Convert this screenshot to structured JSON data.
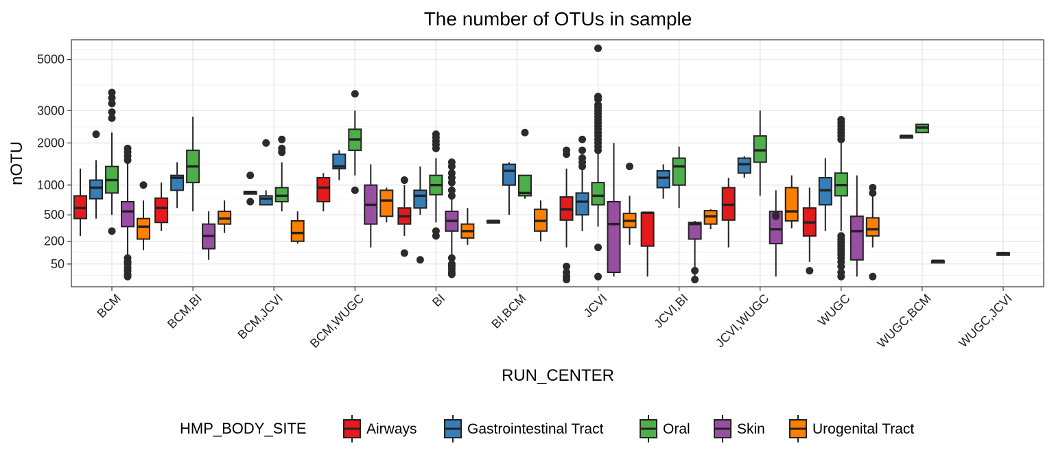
{
  "chart_data": {
    "type": "boxplot",
    "title": "The number of OTUs in sample",
    "xlabel": "RUN_CENTER",
    "ylabel": "nOTU",
    "y_scale": "sqrt",
    "ylim": [
      0,
      5900
    ],
    "y_ticks": [
      50,
      200,
      500,
      1000,
      2000,
      3000,
      5000
    ],
    "grid": true,
    "legend": {
      "title": "HMP_BODY_SITE",
      "position": "bottom",
      "entries": [
        "Airways",
        "Gastrointestinal Tract",
        "Oral",
        "Skin",
        "Urogenital Tract"
      ]
    },
    "colors": {
      "Airways": "#e41a1c",
      "Gastrointestinal Tract": "#377eb8",
      "Oral": "#4daf4a",
      "Skin": "#984ea3",
      "Urogenital Tract": "#ff7f00"
    },
    "categories": [
      "BCM",
      "BCM,BI",
      "BCM,JCVI",
      "BCM,WUGC",
      "BI",
      "BI,BCM",
      "JCVI",
      "JCVI,BI",
      "JCVI,WUGC",
      "WUGC",
      "WUGC,BCM",
      "WUGC,JCVI"
    ],
    "groups": [
      {
        "category": "BCM",
        "boxes": [
          {
            "site": "Airways",
            "whisker_low": 250,
            "q1": 450,
            "median": 600,
            "q3": 800,
            "whisker_high": 1350,
            "outliers": []
          },
          {
            "site": "Gastrointestinal Tract",
            "whisker_low": 450,
            "q1": 750,
            "median": 950,
            "q3": 1100,
            "whisker_high": 1550,
            "outliers": [
              2250
            ]
          },
          {
            "site": "Oral",
            "whisker_low": 500,
            "q1": 850,
            "median": 1100,
            "q3": 1400,
            "whisker_high": 2300,
            "outliers": [
              2750,
              2950,
              3250,
              3450,
              3650,
              300
            ]
          },
          {
            "site": "Skin",
            "whisker_low": 100,
            "q1": 350,
            "median": 550,
            "q3": 700,
            "whisker_high": 1500,
            "outliers": [
              1550,
              1650,
              1750,
              1850,
              80,
              60,
              50,
              35,
              25,
              15,
              10,
              60
            ]
          },
          {
            "site": "Urogenital Tract",
            "whisker_low": 130,
            "q1": 220,
            "median": 350,
            "q3": 450,
            "whisker_high": 720,
            "outliers": [
              1000
            ]
          }
        ]
      },
      {
        "category": "BCM,BI",
        "boxes": [
          {
            "site": "Airways",
            "whisker_low": 300,
            "q1": 400,
            "median": 600,
            "q3": 760,
            "whisker_high": 1050,
            "outliers": []
          },
          {
            "site": "Gastrointestinal Tract",
            "whisker_low": 600,
            "q1": 900,
            "median": 1150,
            "q3": 1200,
            "whisker_high": 1500,
            "outliers": []
          },
          {
            "site": "Oral",
            "whisker_low": 550,
            "q1": 1050,
            "median": 1400,
            "q3": 1800,
            "whisker_high": 2800,
            "outliers": []
          },
          {
            "site": "Skin",
            "whisker_low": 70,
            "q1": 140,
            "median": 250,
            "q3": 380,
            "whisker_high": 550,
            "outliers": []
          },
          {
            "site": "Urogenital Tract",
            "whisker_low": 280,
            "q1": 380,
            "median": 450,
            "q3": 550,
            "whisker_high": 720,
            "outliers": []
          }
        ]
      },
      {
        "category": "BCM,JCVI",
        "boxes": [
          {
            "site": "Airways",
            "whisker_low": 850,
            "q1": 850,
            "median": 870,
            "q3": 870,
            "whisker_high": 870,
            "outliers": [
              1200,
              700
            ]
          },
          {
            "site": "Gastrointestinal Tract",
            "whisker_low": 650,
            "q1": 650,
            "median": 750,
            "q3": 800,
            "whisker_high": 900,
            "outliers": [
              2000
            ]
          },
          {
            "site": "Oral",
            "whisker_low": 550,
            "q1": 700,
            "median": 800,
            "q3": 950,
            "whisker_high": 1500,
            "outliers": [
              1750,
              1850,
              2100
            ]
          },
          {
            "site": "Urogenital Tract",
            "whisker_low": 180,
            "q1": 200,
            "median": 280,
            "q3": 420,
            "whisker_high": 550,
            "outliers": []
          }
        ]
      },
      {
        "category": "BCM,WUGC",
        "boxes": [
          {
            "site": "Airways",
            "whisker_low": 550,
            "q1": 700,
            "median": 950,
            "q3": 1150,
            "whisker_high": 1250,
            "outliers": []
          },
          {
            "site": "Gastrointestinal Tract",
            "whisker_low": 1100,
            "q1": 1350,
            "median": 1400,
            "q3": 1700,
            "whisker_high": 1800,
            "outliers": []
          },
          {
            "site": "Oral",
            "whisker_low": 1200,
            "q1": 1800,
            "median": 2100,
            "q3": 2400,
            "whisker_high": 3000,
            "outliers": [
              3600,
              900
            ]
          },
          {
            "site": "Skin",
            "whisker_low": 150,
            "q1": 380,
            "median": 650,
            "q3": 1000,
            "whisker_high": 1450,
            "outliers": []
          },
          {
            "site": "Urogenital Tract",
            "whisker_low": 400,
            "q1": 480,
            "median": 720,
            "q3": 900,
            "whisker_high": 950,
            "outliers": []
          }
        ]
      },
      {
        "category": "BI",
        "boxes": [
          {
            "site": "Airways",
            "whisker_low": 250,
            "q1": 380,
            "median": 480,
            "q3": 600,
            "whisker_high": 1000,
            "outliers": [
              1100,
              110
            ]
          },
          {
            "site": "Gastrointestinal Tract",
            "whisker_low": 500,
            "q1": 600,
            "median": 800,
            "q3": 900,
            "whisker_high": 1400,
            "outliers": [
              70
            ]
          },
          {
            "site": "Oral",
            "whisker_low": 400,
            "q1": 820,
            "median": 1000,
            "q3": 1200,
            "whisker_high": 1600,
            "outliers": [
              1850,
              1950,
              2050,
              2150,
              2250,
              300,
              250
            ]
          },
          {
            "site": "Skin",
            "whisker_low": 80,
            "q1": 300,
            "median": 420,
            "q3": 550,
            "whisker_high": 1000,
            "outliers": [
              1050,
              1150,
              1250,
              1400,
              1500,
              900,
              800,
              80,
              50,
              40,
              30,
              20,
              15
            ]
          },
          {
            "site": "Urogenital Tract",
            "whisker_low": 170,
            "q1": 230,
            "median": 300,
            "q3": 380,
            "whisker_high": 600,
            "outliers": []
          }
        ]
      },
      {
        "category": "BI,BCM",
        "boxes": [
          {
            "site": "Airways",
            "whisker_low": 420,
            "q1": 420,
            "median": 420,
            "q3": 420,
            "whisker_high": 420,
            "outliers": []
          },
          {
            "site": "Gastrointestinal Tract",
            "whisker_low": 500,
            "q1": 1000,
            "median": 1300,
            "q3": 1450,
            "whisker_high": 1500,
            "outliers": []
          },
          {
            "site": "Oral",
            "whisker_low": 750,
            "q1": 800,
            "median": 850,
            "q3": 1200,
            "whisker_high": 1200,
            "outliers": [
              2300
            ]
          },
          {
            "site": "Urogenital Tract",
            "whisker_low": 200,
            "q1": 300,
            "median": 420,
            "q3": 580,
            "whisker_high": 720,
            "outliers": []
          }
        ]
      },
      {
        "category": "JCVI",
        "boxes": [
          {
            "site": "Airways",
            "whisker_low": 150,
            "q1": 430,
            "median": 580,
            "q3": 780,
            "whisker_high": 1350,
            "outliers": [
              1700,
              1800,
              40,
              20,
              10,
              5
            ]
          },
          {
            "site": "Gastrointestinal Tract",
            "whisker_low": 300,
            "q1": 500,
            "median": 700,
            "q3": 850,
            "whisker_high": 1400,
            "outliers": [
              2100,
              1800,
              1600,
              1500,
              1400
            ]
          },
          {
            "site": "Oral",
            "whisker_low": 350,
            "q1": 650,
            "median": 800,
            "q3": 1050,
            "whisker_high": 1750,
            "outliers": [
              1800,
              1900,
              2000,
              2100,
              2200,
              2300,
              2400,
              2500,
              2600,
              2700,
              2800,
              2900,
              3000,
              3100,
              3200,
              3400,
              3500,
              5500,
              150,
              10
            ]
          },
          {
            "site": "Skin",
            "whisker_low": 10,
            "q1": 20,
            "median": 380,
            "q3": 700,
            "whisker_high": 2000,
            "outliers": []
          },
          {
            "site": "Urogenital Tract",
            "whisker_low": 170,
            "q1": 340,
            "median": 420,
            "q3": 520,
            "whisker_high": 800,
            "outliers": [
              1400
            ]
          }
        ]
      },
      {
        "category": "JCVI,BI",
        "boxes": [
          {
            "site": "Airways",
            "whisker_low": 10,
            "q1": 160,
            "median": 530,
            "q3": 530,
            "whisker_high": 530,
            "outliers": []
          },
          {
            "site": "Gastrointestinal Tract",
            "whisker_low": 750,
            "q1": 950,
            "median": 1150,
            "q3": 1300,
            "whisker_high": 1450,
            "outliers": []
          },
          {
            "site": "Oral",
            "whisker_low": 600,
            "q1": 1000,
            "median": 1400,
            "q3": 1600,
            "whisker_high": 1900,
            "outliers": []
          },
          {
            "site": "Skin",
            "whisker_low": 5,
            "q1": 220,
            "median": 380,
            "q3": 400,
            "whisker_high": 420,
            "outliers": [
              5,
              25
            ]
          },
          {
            "site": "Urogenital Tract",
            "whisker_low": 320,
            "q1": 380,
            "median": 480,
            "q3": 560,
            "whisker_high": 580,
            "outliers": []
          }
        ]
      },
      {
        "category": "JCVI,WUGC",
        "boxes": [
          {
            "site": "Airways",
            "whisker_low": 150,
            "q1": 430,
            "median": 650,
            "q3": 950,
            "whisker_high": 1150,
            "outliers": []
          },
          {
            "site": "Gastrointestinal Tract",
            "whisker_low": 1150,
            "q1": 1250,
            "median": 1450,
            "q3": 1600,
            "whisker_high": 1650,
            "outliers": []
          },
          {
            "site": "Oral",
            "whisker_low": 800,
            "q1": 1500,
            "median": 1800,
            "q3": 2200,
            "whisker_high": 3000,
            "outliers": []
          },
          {
            "site": "Skin",
            "whisker_low": 10,
            "q1": 180,
            "median": 320,
            "q3": 550,
            "whisker_high": 900,
            "outliers": [
              480,
              500
            ]
          },
          {
            "site": "Urogenital Tract",
            "whisker_low": 330,
            "q1": 420,
            "median": 550,
            "q3": 950,
            "whisker_high": 1200,
            "outliers": []
          }
        ]
      },
      {
        "category": "WUGC",
        "boxes": [
          {
            "site": "Airways",
            "whisker_low": 60,
            "q1": 250,
            "median": 400,
            "q3": 600,
            "whisker_high": 950,
            "outliers": [
              25
            ]
          },
          {
            "site": "Gastrointestinal Tract",
            "whisker_low": 300,
            "q1": 650,
            "median": 900,
            "q3": 1150,
            "whisker_high": 1600,
            "outliers": []
          },
          {
            "site": "Oral",
            "whisker_low": 300,
            "q1": 800,
            "median": 1000,
            "q3": 1250,
            "whisker_high": 2000,
            "outliers": [
              2100,
              2200,
              2300,
              2400,
              2500,
              2600,
              2700,
              250,
              220,
              200,
              180,
              160,
              140,
              120,
              100,
              80,
              60,
              40,
              20,
              10
            ]
          },
          {
            "site": "Skin",
            "whisker_low": 10,
            "q1": 70,
            "median": 300,
            "q3": 480,
            "whisker_high": 1200,
            "outliers": []
          },
          {
            "site": "Urogenital Tract",
            "whisker_low": 150,
            "q1": 250,
            "median": 320,
            "q3": 460,
            "whisker_high": 800,
            "outliers": [
              850,
              950,
              10
            ]
          }
        ]
      },
      {
        "category": "WUGC,BCM",
        "boxes": [
          {
            "site": "Airways",
            "whisker_low": 2200,
            "q1": 2200,
            "median": 2200,
            "q3": 2200,
            "whisker_high": 2200,
            "outliers": []
          },
          {
            "site": "Oral",
            "whisker_low": 2300,
            "q1": 2300,
            "median": 2450,
            "q3": 2550,
            "whisker_high": 2550,
            "outliers": []
          },
          {
            "site": "Skin",
            "whisker_low": 65,
            "q1": 65,
            "median": 65,
            "q3": 65,
            "whisker_high": 65,
            "outliers": []
          }
        ]
      },
      {
        "category": "WUGC,JCVI",
        "boxes": [
          {
            "site": "Skin",
            "whisker_low": 110,
            "q1": 110,
            "median": 110,
            "q3": 110,
            "whisker_high": 110,
            "outliers": []
          }
        ]
      }
    ]
  }
}
